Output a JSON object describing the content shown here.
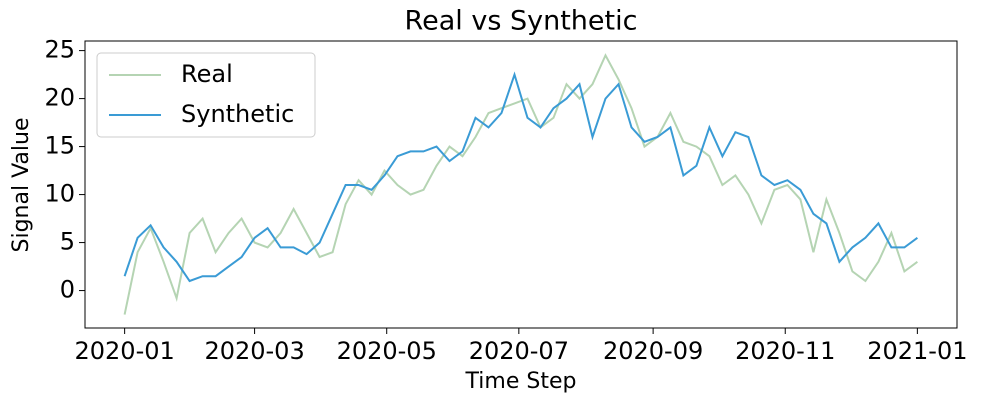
{
  "chart_data": {
    "type": "line",
    "title": "Real vs Synthetic",
    "x_label": "Time Step",
    "y_label": "Signal Value",
    "x": [
      0,
      6,
      12,
      18,
      24,
      30,
      36,
      42,
      48,
      54,
      60,
      66,
      72,
      78,
      84,
      90,
      96,
      102,
      108,
      114,
      120,
      126,
      132,
      138,
      144,
      150,
      156,
      162,
      168,
      174,
      180,
      186,
      192,
      198,
      204,
      210,
      216,
      222,
      228,
      234,
      240,
      246,
      252,
      258,
      264,
      270,
      276,
      282,
      288,
      294,
      300,
      306,
      312,
      318,
      324,
      330,
      336,
      342,
      348,
      354,
      360,
      366
    ],
    "series": [
      {
        "name": "Real",
        "color": "#b5d4b3",
        "values": [
          -2.5,
          4,
          6.5,
          3,
          -0.8,
          6,
          7.5,
          4,
          6,
          7.5,
          5,
          4.5,
          6,
          8.5,
          6,
          3.5,
          4,
          9,
          11.5,
          10,
          12.5,
          11,
          10,
          10.5,
          13,
          15,
          14,
          16,
          18.5,
          19,
          19.5,
          20,
          17,
          18,
          21.5,
          20,
          21.5,
          24.5,
          22,
          19,
          15,
          16,
          18.5,
          15.5,
          15,
          14,
          11,
          12,
          10,
          7,
          10.5,
          11,
          9.5,
          4,
          9.5,
          6,
          2,
          1,
          3,
          6,
          2,
          3
        ]
      },
      {
        "name": "Synthetic",
        "color": "#3a9bd5",
        "values": [
          1.5,
          5.5,
          6.8,
          4.5,
          3,
          1,
          1.5,
          1.5,
          2.5,
          3.5,
          5.5,
          6.5,
          4.5,
          4.5,
          3.8,
          5,
          8,
          11,
          11,
          10.5,
          12,
          14,
          14.5,
          14.5,
          15,
          13.5,
          14.5,
          18,
          17,
          18.5,
          22.5,
          18,
          17,
          19,
          20,
          21.5,
          16,
          20,
          21.5,
          17,
          15.5,
          16,
          17,
          12,
          13,
          17,
          14,
          16.5,
          16,
          12,
          11,
          11.5,
          10.5,
          8,
          7,
          3,
          4.5,
          5.5,
          7,
          4.5,
          4.5,
          5.5
        ]
      }
    ],
    "xlim": [
      -18.3,
      384.3
    ],
    "xticks": [
      {
        "value": 0,
        "label": "2020-01"
      },
      {
        "value": 60,
        "label": "2020-03"
      },
      {
        "value": 121,
        "label": "2020-05"
      },
      {
        "value": 182,
        "label": "2020-07"
      },
      {
        "value": 244,
        "label": "2020-09"
      },
      {
        "value": 305,
        "label": "2020-11"
      },
      {
        "value": 366,
        "label": "2021-01"
      }
    ],
    "ylim": [
      -3.9,
      26.0
    ],
    "yticks": [
      0,
      5,
      10,
      15,
      20,
      25
    ],
    "grid": false,
    "legend": "upper-left"
  }
}
